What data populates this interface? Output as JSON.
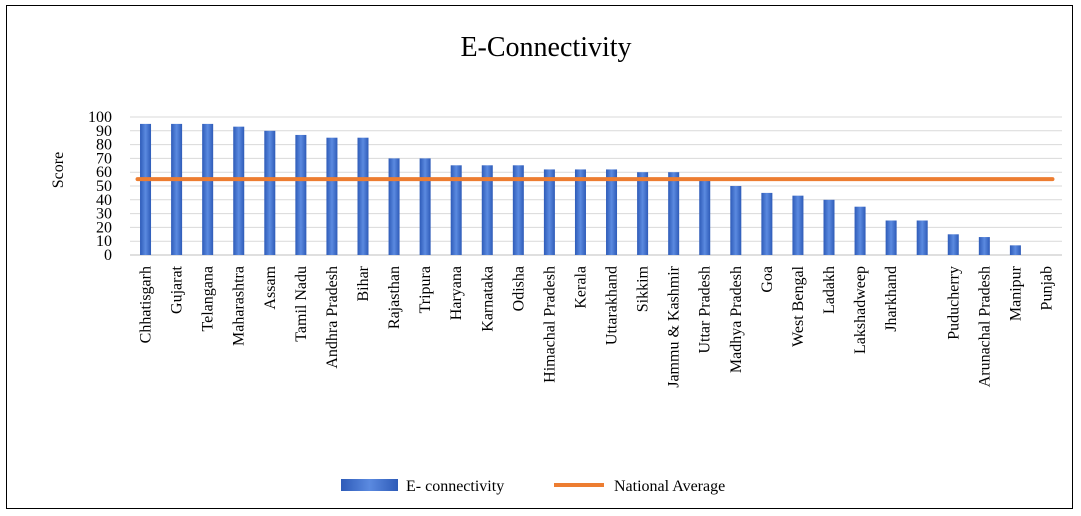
{
  "chart_data": {
    "type": "bar",
    "title": "E-Connectivity",
    "ylabel": "Score",
    "xlabel": "",
    "ylim": [
      0,
      100
    ],
    "yticks": [
      0,
      10,
      20,
      30,
      40,
      50,
      60,
      70,
      80,
      90,
      100
    ],
    "grid": true,
    "legend_position": "bottom",
    "categories": [
      "Chhatisgarh",
      "Gujarat",
      "Telangana",
      "Maharashtra",
      "Assam",
      "Tamil Nadu",
      "Andhra Pradesh",
      "Bihar",
      "Rajasthan",
      "Tripura",
      "Haryana",
      "Karnataka",
      "Odisha",
      "Himachal Pradesh",
      "Kerala",
      "Uttarakhand",
      "Sikkim",
      "Jammu & Kashmir",
      "Uttar Pradesh",
      "Madhya Pradesh",
      "Goa",
      "West Bengal",
      "Ladakh",
      "Lakshadweep",
      "Jharkhand",
      "",
      "Puducherry",
      "Arunachal Pradesh",
      "Manipur",
      "Punjab"
    ],
    "series": [
      {
        "name": "E- connectivity",
        "type": "bar",
        "color": "#4472C4",
        "values": [
          95,
          95,
          95,
          93,
          90,
          87,
          85,
          85,
          70,
          70,
          65,
          65,
          65,
          62,
          62,
          62,
          60,
          60,
          55,
          50,
          45,
          43,
          40,
          35,
          25,
          25,
          15,
          13,
          7,
          0
        ]
      },
      {
        "name": "National Average",
        "type": "line",
        "color": "#ED7D31",
        "value": 55
      }
    ]
  }
}
